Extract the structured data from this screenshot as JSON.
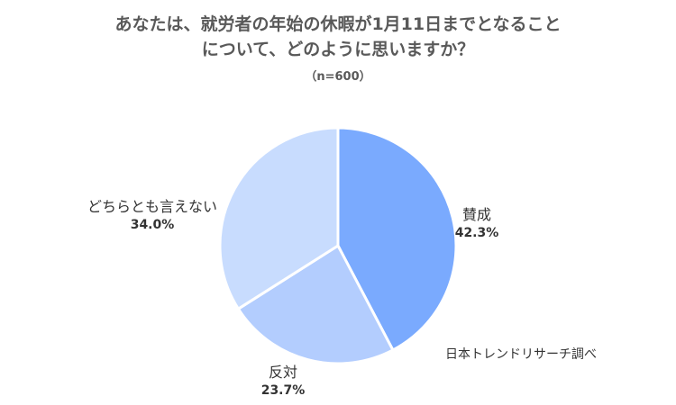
{
  "chart_data": {
    "type": "pie",
    "title_line1": "あなたは、就労者の年始の休暇が1月11日までとなること",
    "title_line2": "について、どのように思いますか？",
    "subtitle": "（n=600）",
    "slices": [
      {
        "name": "賛成",
        "value": 42.3,
        "label": "42.3%",
        "color": "#7aaafe"
      },
      {
        "name": "反対",
        "value": 23.7,
        "label": "23.7%",
        "color": "#b3cdfe"
      },
      {
        "name": "どちらとも言えない",
        "value": 34.0,
        "label": "34.0%",
        "color": "#c8dcfe"
      }
    ],
    "legend": "none"
  },
  "source": "日本トレンドリサーチ調べ"
}
